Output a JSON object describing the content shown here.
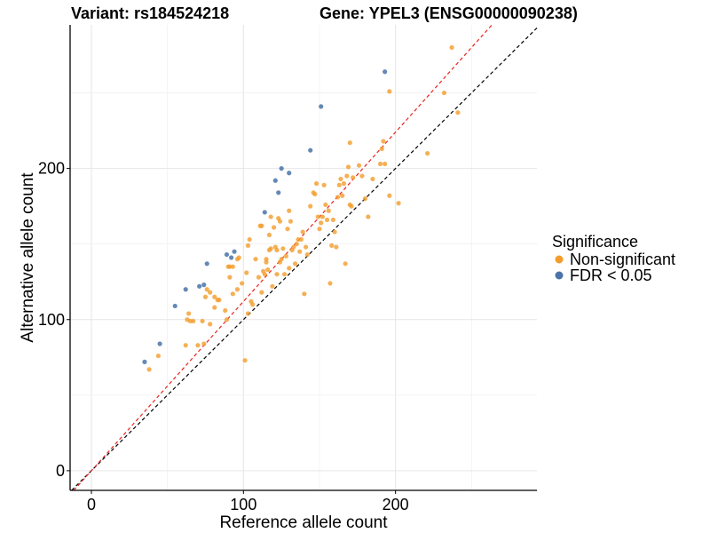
{
  "chart_data": {
    "type": "scatter",
    "title_left": "Variant: rs184524218",
    "title_right": "Gene: YPEL3 (ENSG00000090238)",
    "xlabel": "Reference allele count",
    "ylabel": "Alternative allele count",
    "xlim": [
      -14,
      293
    ],
    "ylim": [
      -13,
      295
    ],
    "x_ticks": [
      0,
      100,
      200
    ],
    "y_ticks": [
      0,
      100,
      200
    ],
    "grid": true,
    "legend": {
      "title": "Significance",
      "position": "right",
      "entries": [
        {
          "label": "Non-significant",
          "color": "#F39C2C"
        },
        {
          "label": "FDR < 0.05",
          "color": "#4A74A8"
        }
      ]
    },
    "reference_lines": [
      {
        "name": "identity",
        "slope": 1,
        "intercept": 0,
        "color": "#000000",
        "style": "dashed"
      },
      {
        "name": "fit",
        "slope": 1.12,
        "intercept": 0,
        "color": "#E8231E",
        "style": "dashed"
      }
    ],
    "series": [
      {
        "name": "Non-significant",
        "color": "#F39C2C",
        "points": [
          [
            38,
            67
          ],
          [
            44,
            76
          ],
          [
            62,
            83
          ],
          [
            65,
            99
          ],
          [
            63,
            100
          ],
          [
            64,
            104
          ],
          [
            67,
            99
          ],
          [
            70,
            83
          ],
          [
            73,
            99
          ],
          [
            75,
            115
          ],
          [
            76,
            120
          ],
          [
            74,
            84
          ],
          [
            78,
            97
          ],
          [
            78,
            118
          ],
          [
            81,
            108
          ],
          [
            81,
            115
          ],
          [
            83,
            113
          ],
          [
            84,
            113
          ],
          [
            88,
            106
          ],
          [
            89,
            100
          ],
          [
            90,
            135
          ],
          [
            91,
            128
          ],
          [
            91,
            135
          ],
          [
            93,
            135
          ],
          [
            93,
            117
          ],
          [
            96,
            140
          ],
          [
            97,
            141
          ],
          [
            96,
            120
          ],
          [
            99,
            124
          ],
          [
            101,
            73
          ],
          [
            102,
            131
          ],
          [
            103,
            149
          ],
          [
            104,
            153
          ],
          [
            103,
            104
          ],
          [
            105,
            112
          ],
          [
            106,
            110
          ],
          [
            108,
            140
          ],
          [
            110,
            128
          ],
          [
            111,
            162
          ],
          [
            112,
            162
          ],
          [
            112,
            118
          ],
          [
            113,
            132
          ],
          [
            114,
            130
          ],
          [
            115,
            140
          ],
          [
            115,
            138
          ],
          [
            116,
            133
          ],
          [
            117,
            146
          ],
          [
            117,
            156
          ],
          [
            118,
            147
          ],
          [
            118,
            168
          ],
          [
            119,
            122
          ],
          [
            120,
            161
          ],
          [
            121,
            148
          ],
          [
            122,
            146
          ],
          [
            122,
            130
          ],
          [
            123,
            167
          ],
          [
            124,
            165
          ],
          [
            124,
            138
          ],
          [
            125,
            140
          ],
          [
            126,
            147
          ],
          [
            127,
            130
          ],
          [
            128,
            142
          ],
          [
            129,
            160
          ],
          [
            130,
            134
          ],
          [
            130,
            172
          ],
          [
            131,
            165
          ],
          [
            132,
            146
          ],
          [
            133,
            148
          ],
          [
            134,
            137
          ],
          [
            135,
            150
          ],
          [
            136,
            153
          ],
          [
            137,
            145
          ],
          [
            138,
            153
          ],
          [
            139,
            158
          ],
          [
            140,
            117
          ],
          [
            141,
            148
          ],
          [
            142,
            143
          ],
          [
            144,
            175
          ],
          [
            146,
            184
          ],
          [
            147,
            183
          ],
          [
            148,
            190
          ],
          [
            149,
            168
          ],
          [
            150,
            160
          ],
          [
            151,
            164
          ],
          [
            152,
            168
          ],
          [
            153,
            189
          ],
          [
            154,
            176
          ],
          [
            155,
            166
          ],
          [
            156,
            172
          ],
          [
            157,
            124
          ],
          [
            158,
            149
          ],
          [
            159,
            166
          ],
          [
            160,
            158
          ],
          [
            161,
            148
          ],
          [
            162,
            181
          ],
          [
            163,
            189
          ],
          [
            164,
            193
          ],
          [
            165,
            182
          ],
          [
            166,
            190
          ],
          [
            167,
            137
          ],
          [
            168,
            195
          ],
          [
            169,
            201
          ],
          [
            170,
            176
          ],
          [
            170,
            217
          ],
          [
            171,
            175
          ],
          [
            172,
            194
          ],
          [
            176,
            202
          ],
          [
            178,
            195
          ],
          [
            180,
            180
          ],
          [
            182,
            168
          ],
          [
            185,
            193
          ],
          [
            190,
            203
          ],
          [
            191,
            213
          ],
          [
            192,
            218
          ],
          [
            193,
            203
          ],
          [
            196,
            182
          ],
          [
            196,
            251
          ],
          [
            202,
            177
          ],
          [
            221,
            210
          ],
          [
            232,
            250
          ],
          [
            237,
            280
          ],
          [
            241,
            237
          ]
        ]
      },
      {
        "name": "FDR < 0.05",
        "color": "#4A74A8",
        "points": [
          [
            35,
            72
          ],
          [
            45,
            84
          ],
          [
            55,
            109
          ],
          [
            62,
            120
          ],
          [
            71,
            122
          ],
          [
            74,
            123
          ],
          [
            76,
            137
          ],
          [
            89,
            143
          ],
          [
            92,
            141
          ],
          [
            94,
            145
          ],
          [
            114,
            171
          ],
          [
            121,
            192
          ],
          [
            123,
            184
          ],
          [
            125,
            200
          ],
          [
            130,
            197
          ],
          [
            144,
            212
          ],
          [
            151,
            241
          ],
          [
            193,
            264
          ]
        ]
      }
    ]
  }
}
